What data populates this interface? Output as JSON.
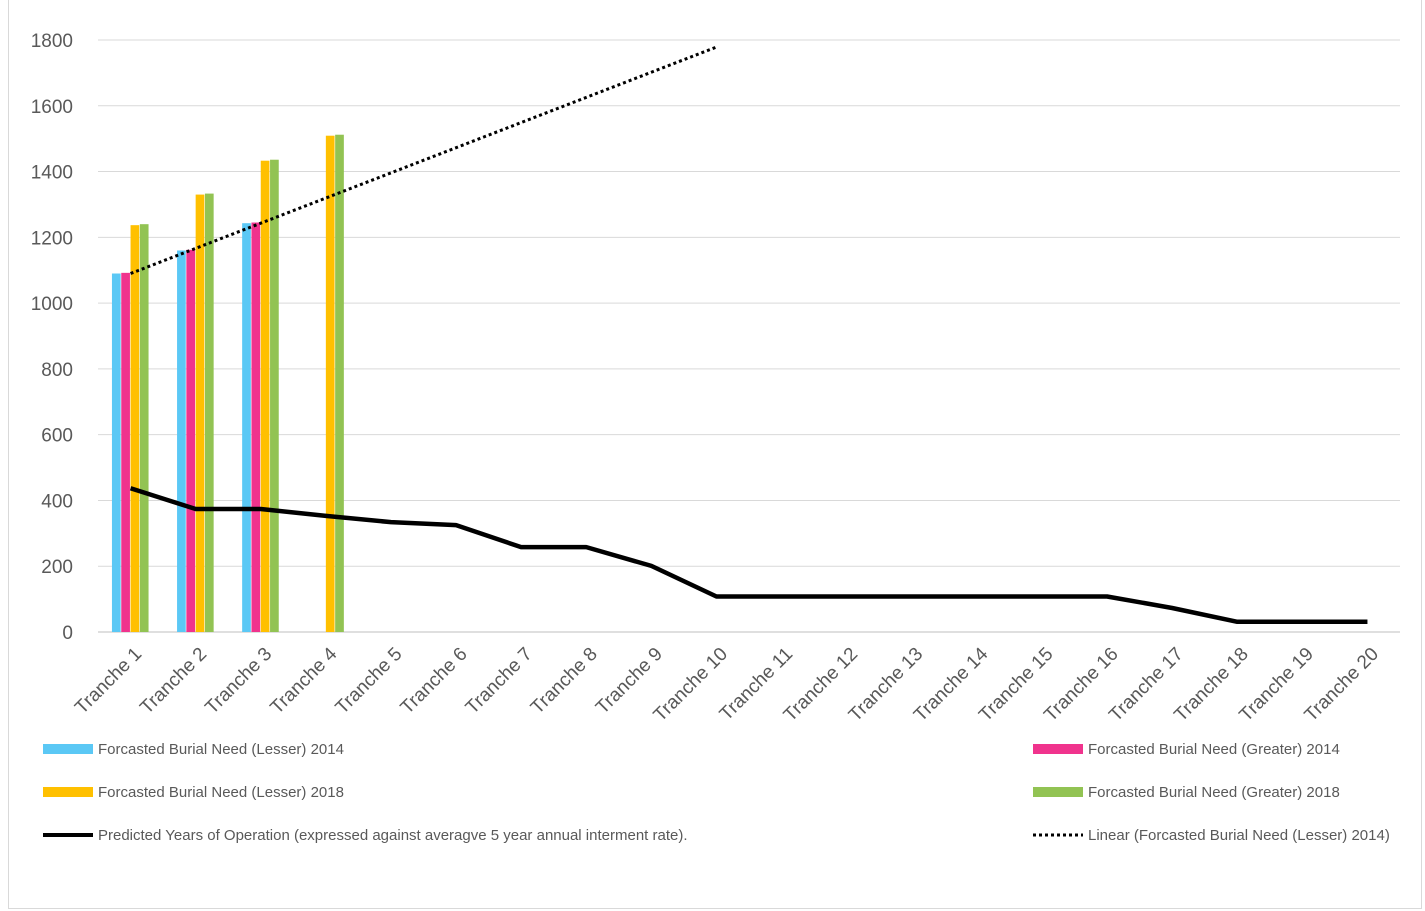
{
  "chart_data": {
    "type": "bar",
    "title": "",
    "xlabel": "",
    "ylabel": "",
    "ylim": [
      0,
      1800
    ],
    "yticks": [
      0,
      200,
      400,
      600,
      800,
      1000,
      1200,
      1400,
      1600,
      1800
    ],
    "grid": true,
    "legend_position": "bottom",
    "categories": [
      "Tranche 1",
      "Tranche 2",
      "Tranche 3",
      "Tranche 4",
      "Tranche 5",
      "Tranche 6",
      "Tranche 7",
      "Tranche 8",
      "Tranche 9",
      "Tranche 10",
      "Tranche 11",
      "Tranche 12",
      "Tranche 13",
      "Tranche 14",
      "Tranche 15",
      "Tranche 16",
      "Tranche 17",
      "Tranche 18",
      "Tranche 19",
      "Tranche 20"
    ],
    "series": [
      {
        "name": "Forcasted Burial Need (Lesser) 2014",
        "type": "bar",
        "color": "#5bc8f5",
        "values": [
          1090,
          1160,
          1243,
          null,
          null,
          null,
          null,
          null,
          null,
          null,
          null,
          null,
          null,
          null,
          null,
          null,
          null,
          null,
          null,
          null
        ]
      },
      {
        "name": "Forcasted Burial Need (Greater) 2014",
        "type": "bar",
        "color": "#f0338d",
        "values": [
          1092,
          1162,
          1245,
          null,
          null,
          null,
          null,
          null,
          null,
          null,
          null,
          null,
          null,
          null,
          null,
          null,
          null,
          null,
          null,
          null
        ]
      },
      {
        "name": "Forcasted Burial Need (Lesser) 2018",
        "type": "bar",
        "color": "#ffc000",
        "values": [
          1237,
          1330,
          1433,
          1509,
          null,
          null,
          null,
          null,
          null,
          null,
          null,
          null,
          null,
          null,
          null,
          null,
          null,
          null,
          null,
          null
        ]
      },
      {
        "name": "Forcasted Burial Need (Greater) 2018",
        "type": "bar",
        "color": "#92c353",
        "values": [
          1240,
          1333,
          1436,
          1512,
          null,
          null,
          null,
          null,
          null,
          null,
          null,
          null,
          null,
          null,
          null,
          null,
          null,
          null,
          null,
          null
        ]
      },
      {
        "name": "Predicted Years of Operation (expressed against averagve 5 year annual interment rate).",
        "type": "line",
        "color": "#000000",
        "values": [
          437,
          374,
          374,
          353,
          334,
          325,
          258,
          258,
          201,
          108,
          108,
          108,
          108,
          108,
          108,
          108,
          73,
          31,
          31,
          31
        ]
      },
      {
        "name": "Linear (Forcasted Burial Need (Lesser) 2014)",
        "type": "trendline",
        "color": "#000000",
        "start": [
          1,
          1090
        ],
        "slope": 76.5,
        "x_end": 10
      }
    ]
  }
}
